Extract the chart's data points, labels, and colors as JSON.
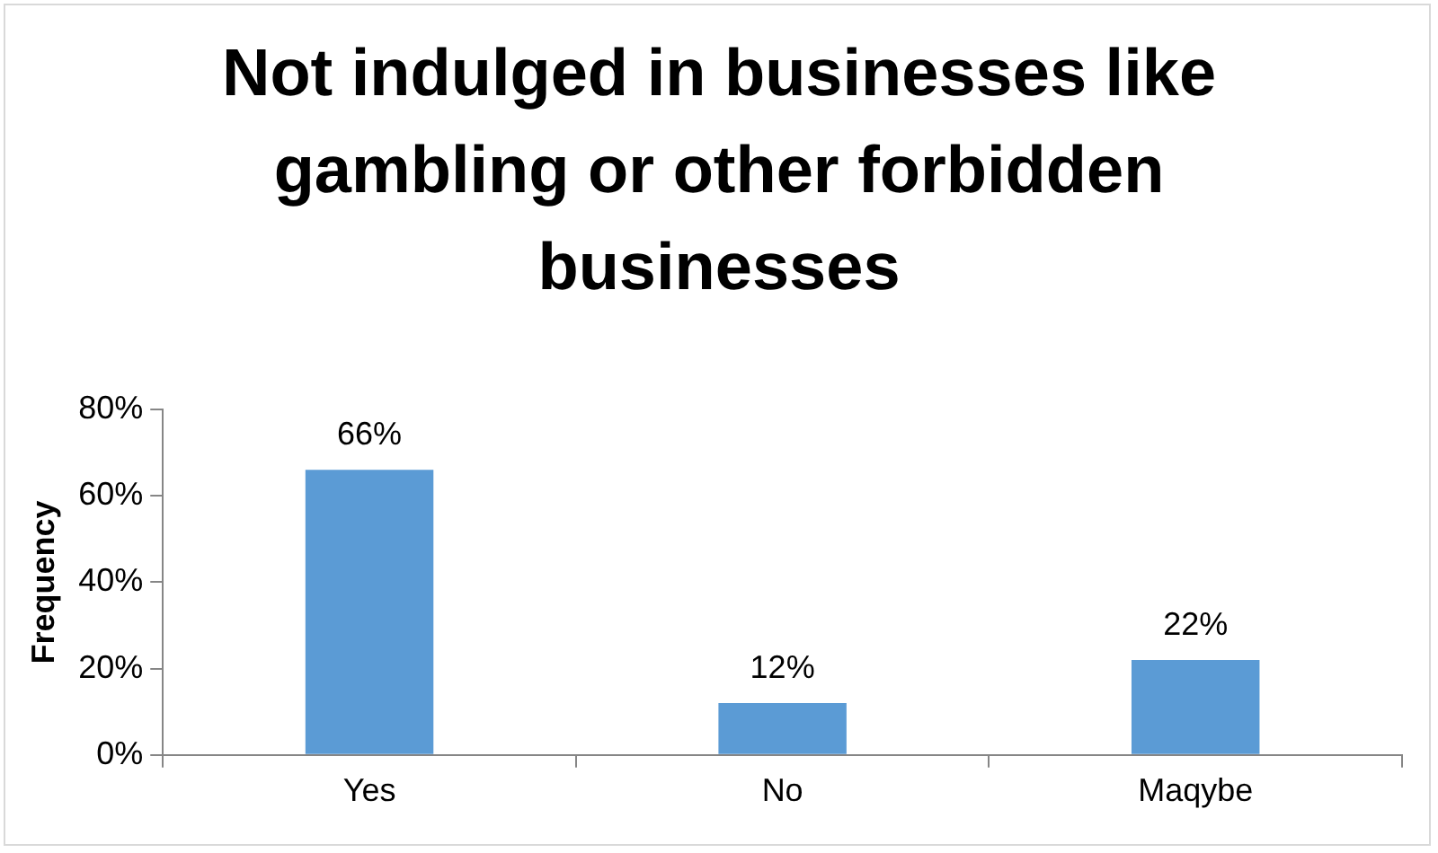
{
  "chart_data": {
    "type": "bar",
    "title": "Not indulged in businesses like gambling or other forbidden businesses",
    "ylabel": "Frequency",
    "categories": [
      "Yes",
      "No",
      "Maqybe"
    ],
    "values": [
      66,
      12,
      22
    ],
    "value_labels": [
      "66%",
      "12%",
      "22%"
    ],
    "color": "#5b9bd5",
    "ylim": [
      0,
      80
    ],
    "yticks": [
      {
        "value": 0,
        "label": "0%"
      },
      {
        "value": 20,
        "label": "20%"
      },
      {
        "value": 40,
        "label": "40%"
      },
      {
        "value": 60,
        "label": "60%"
      },
      {
        "value": 80,
        "label": "80%"
      }
    ],
    "grid": false,
    "legend": false
  }
}
